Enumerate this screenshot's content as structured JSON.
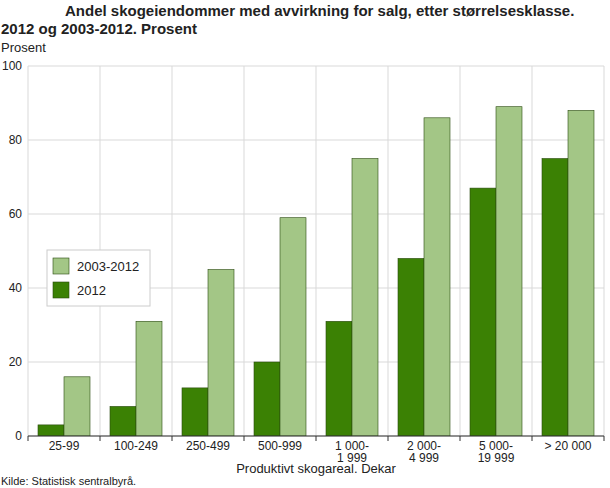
{
  "chart_data": {
    "type": "bar",
    "title": "Andel skogeiendommer med avvirkning for salg, etter størrelsesklasse. 2012 og 2003-2012. Prosent",
    "y_label": "Prosent",
    "x_label": "Produktivt skogareal. Dekar",
    "source": "Kilde: Statistisk sentralbyrå.",
    "categories": [
      "25-99",
      "100-249",
      "250-499",
      "500-999",
      "1 000-1 999",
      "2 000-4 999",
      "5 000-19 999",
      "> 20 000"
    ],
    "series": [
      {
        "name": "2012",
        "color": "#3b8104",
        "values": [
          3,
          8,
          13,
          20,
          31,
          48,
          67,
          75
        ]
      },
      {
        "name": "2003-2012",
        "color": "#a3c686",
        "values": [
          16,
          31,
          45,
          59,
          75,
          86,
          89,
          88
        ]
      }
    ],
    "ylim": [
      0,
      100
    ],
    "yticks": [
      0,
      20,
      40,
      60,
      80,
      100
    ],
    "grid": true,
    "legend": "left"
  }
}
